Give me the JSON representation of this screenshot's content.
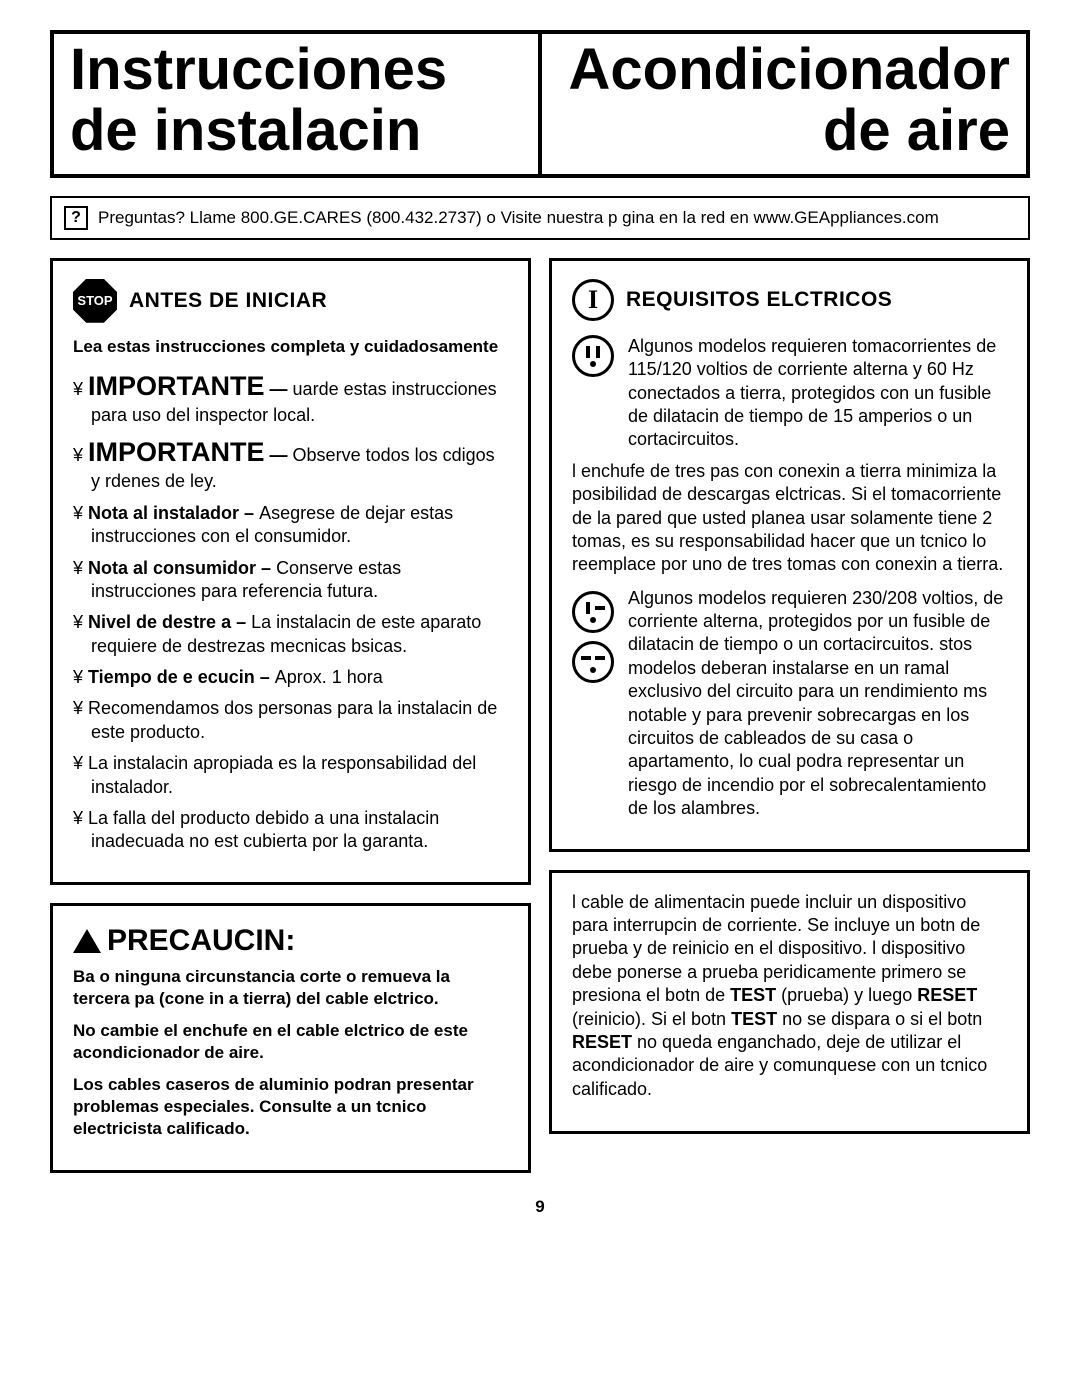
{
  "title": {
    "left_line1": "Instrucciones",
    "left_line2": "de instalacin",
    "right_line1": "Acondicionador",
    "right_line2": "de aire"
  },
  "question_bar": {
    "text": "Preguntas? Llame 800.GE.CARES (800.432.2737) o Visite nuestra p gina en la red en www.GEAppliances.com"
  },
  "before_start": {
    "title": "ANTES DE INICIAR",
    "lead": "Lea estas instrucciones completa y cuidadosamente",
    "imp1_prefix": "IMPORTANTE",
    "imp1_text": " uarde estas instrucciones para uso del inspector local.",
    "imp2_prefix": "IMPORTANTE",
    "imp2_text": "Observe todos los cdigos y rdenes de ley.",
    "items": [
      {
        "bold": "Nota al instalador – ",
        "rest": "Asegrese de dejar estas instrucciones con el consumidor."
      },
      {
        "bold": "Nota al consumidor – ",
        "rest": "Conserve estas instrucciones para referencia futura."
      },
      {
        "bold": "Nivel de destre a – ",
        "rest": "La instalacin de este aparato requiere de destrezas mecnicas bsicas."
      },
      {
        "bold": "Tiempo de e ecucin – ",
        "rest": " Aprox. 1 hora"
      },
      {
        "bold": "",
        "rest": "Recomendamos dos personas para la instalacin de este producto."
      },
      {
        "bold": "",
        "rest": "La instalacin apropiada es la responsabilidad del instalador."
      },
      {
        "bold": "",
        "rest": "La falla del producto debido a una instalacin inadecuada no est cubierta por la garanta."
      }
    ]
  },
  "electrical": {
    "title": "REQUISITOS ELCTRICOS",
    "block1": "Algunos modelos requieren tomacorrientes de 115/120 voltios de corriente alterna y 60 Hz conectados a tierra, protegidos con un fusible de dilatacin de tiempo de 15 amperios o un cortacircuitos.",
    "para1": " l enchufe de tres pas con conexin a tierra minimiza la posibilidad de descargas elctricas. Si el tomacorriente de la pared que usted planea usar solamente tiene 2 tomas, es su responsabilidad hacer que un tcnico lo reemplace por uno de tres tomas con conexin a tierra.",
    "block2": "Algunos modelos requieren 230/208 voltios, de corriente alterna, protegidos por un fusible de dilatacin de tiempo o un cortacircuitos.  stos modelos deberan instalarse en un ramal exclusivo del circuito para un rendimiento ms notable y para prevenir sobrecargas en los circuitos de cableados de su casa o apartamento, lo cual podra representar un riesgo de incendio por el sobrecalentamiento de los alambres."
  },
  "caution": {
    "title": "PRECAUCIN:",
    "p1": "Ba o ninguna circunstancia corte o remueva la tercera pa (cone in a tierra) del cable elctrico.",
    "p2": "No cambie el enchufe en el cable elctrico de este acondicionador de aire.",
    "p3": "Los cables caseros de aluminio podran presentar problemas especiales. Consulte a un tcnico electricista calificado."
  },
  "power_cord": {
    "pre": " l cable de alimentacin puede incluir un dispositivo para interrupcin de corriente. Se incluye un botn de prueba y de reinicio en el dispositivo.  l dispositivo debe ponerse a prueba peridicamente  primero se presiona el botn de ",
    "b1": "TEST",
    "mid1": " (prueba) y luego ",
    "b2": "RESET",
    "mid2": " (reinicio). Si el botn  ",
    "b3": "TEST",
    "mid3": " no se dispara o si el botn  ",
    "b4": "RESET",
    "end": " no queda enganchado, deje de utilizar el acondicionador de aire y comunquese con un tcnico calificado."
  },
  "page_number": "9"
}
